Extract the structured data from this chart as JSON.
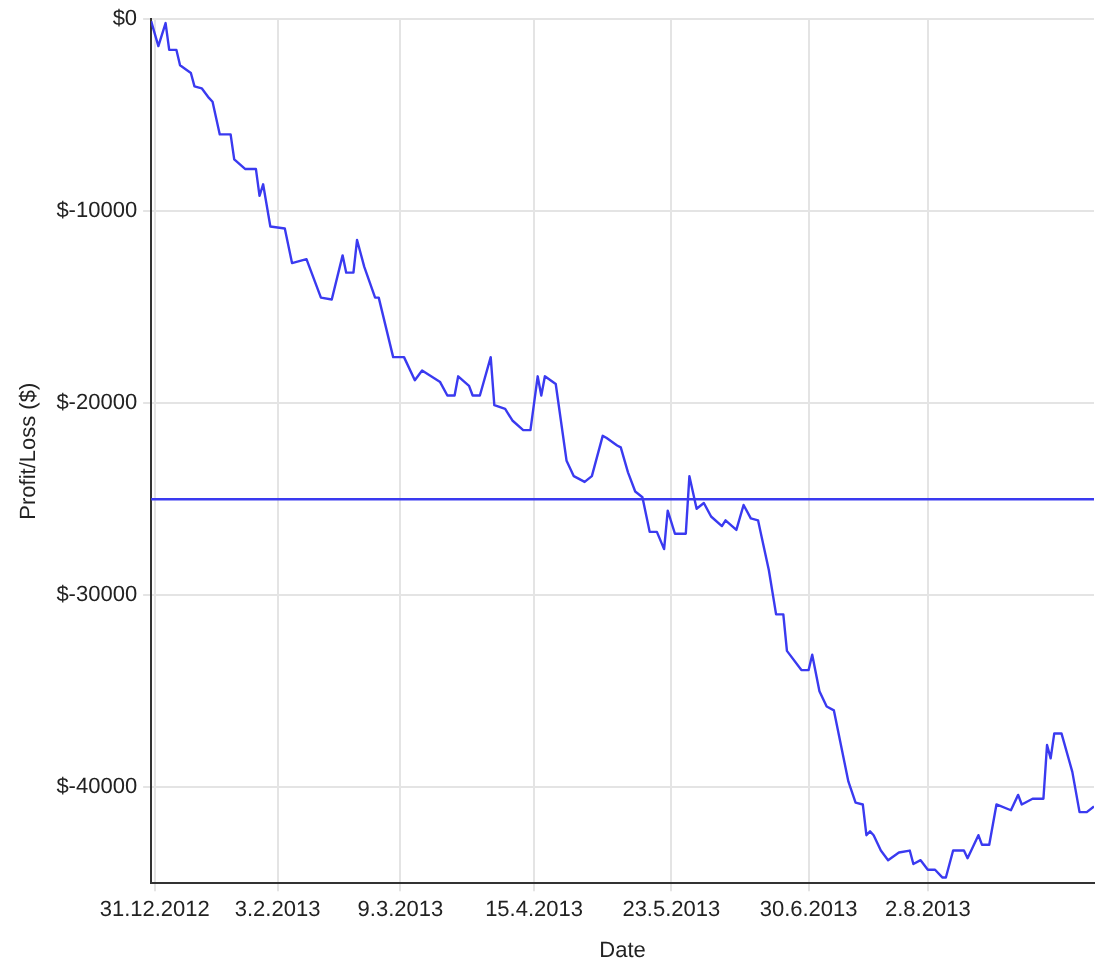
{
  "chart_data": {
    "type": "line",
    "xlabel": "Date",
    "ylabel": "Profit/Loss ($)",
    "xlim": [
      "2012-12-30",
      "2013-09-17"
    ],
    "xticks": [
      {
        "value": "2012-12-31",
        "label": "31.12.2012"
      },
      {
        "value": "2013-02-03",
        "label": "3.2.2013"
      },
      {
        "value": "2013-03-09",
        "label": "9.3.2013"
      },
      {
        "value": "2013-04-15",
        "label": "15.4.2013"
      },
      {
        "value": "2013-05-23",
        "label": "23.5.2013"
      },
      {
        "value": "2013-06-30",
        "label": "30.6.2013"
      },
      {
        "value": "2013-08-02",
        "label": "2.8.2013"
      }
    ],
    "ylim": [
      -45000,
      0
    ],
    "yticks": [
      {
        "value": -40000,
        "label": "$-40000"
      },
      {
        "value": -30000,
        "label": "$-30000"
      },
      {
        "value": -20000,
        "label": "$-20000"
      },
      {
        "value": -10000,
        "label": "$-10000"
      },
      {
        "value": 0,
        "label": "$0"
      }
    ],
    "grid": true,
    "legend": false,
    "marker": "none",
    "line_style": "solid",
    "ref_lines": [
      {
        "axis": "y",
        "value": -25000,
        "color": "#3a3af0"
      }
    ],
    "series": [
      {
        "color": "#3a3af0",
        "x": [
          "2012-12-30",
          "2013-01-01",
          "2013-01-03",
          "2013-01-04",
          "2013-01-06",
          "2013-01-07",
          "2013-01-10",
          "2013-01-11",
          "2013-01-13",
          "2013-01-15",
          "2013-01-16",
          "2013-01-18",
          "2013-01-21",
          "2013-01-22",
          "2013-01-25",
          "2013-01-28",
          "2013-01-29",
          "2013-01-30",
          "2013-02-01",
          "2013-02-05",
          "2013-02-07",
          "2013-02-11",
          "2013-02-15",
          "2013-02-18",
          "2013-02-21",
          "2013-02-22",
          "2013-02-24",
          "2013-02-25",
          "2013-02-27",
          "2013-03-02",
          "2013-03-03",
          "2013-03-07",
          "2013-03-10",
          "2013-03-13",
          "2013-03-15",
          "2013-03-20",
          "2013-03-22",
          "2013-03-24",
          "2013-03-25",
          "2013-03-28",
          "2013-03-29",
          "2013-03-31",
          "2013-04-03",
          "2013-04-04",
          "2013-04-07",
          "2013-04-09",
          "2013-04-12",
          "2013-04-14",
          "2013-04-16",
          "2013-04-17",
          "2013-04-18",
          "2013-04-21",
          "2013-04-24",
          "2013-04-26",
          "2013-04-29",
          "2013-05-01",
          "2013-05-04",
          "2013-05-05",
          "2013-05-08",
          "2013-05-09",
          "2013-05-11",
          "2013-05-13",
          "2013-05-15",
          "2013-05-17",
          "2013-05-19",
          "2013-05-21",
          "2013-05-22",
          "2013-05-24",
          "2013-05-27",
          "2013-05-28",
          "2013-05-30",
          "2013-06-01",
          "2013-06-03",
          "2013-06-06",
          "2013-06-07",
          "2013-06-10",
          "2013-06-12",
          "2013-06-14",
          "2013-06-16",
          "2013-06-19",
          "2013-06-21",
          "2013-06-23",
          "2013-06-24",
          "2013-06-28",
          "2013-06-30",
          "2013-07-01",
          "2013-07-03",
          "2013-07-05",
          "2013-07-07",
          "2013-07-11",
          "2013-07-13",
          "2013-07-15",
          "2013-07-16",
          "2013-07-17",
          "2013-07-18",
          "2013-07-20",
          "2013-07-22",
          "2013-07-25",
          "2013-07-28",
          "2013-07-29",
          "2013-07-31",
          "2013-08-02",
          "2013-08-04",
          "2013-08-06",
          "2013-08-07",
          "2013-08-09",
          "2013-08-12",
          "2013-08-13",
          "2013-08-16",
          "2013-08-17",
          "2013-08-19",
          "2013-08-21",
          "2013-08-25",
          "2013-08-27",
          "2013-08-28",
          "2013-08-31",
          "2013-09-03",
          "2013-09-04",
          "2013-09-05",
          "2013-09-06",
          "2013-09-08",
          "2013-09-11",
          "2013-09-13",
          "2013-09-15",
          "2013-09-17"
        ],
        "values": [
          -100,
          -1400,
          -200,
          -1600,
          -1600,
          -2400,
          -2800,
          -3500,
          -3600,
          -4100,
          -4300,
          -6000,
          -6000,
          -7300,
          -7800,
          -7800,
          -9200,
          -8600,
          -10800,
          -10900,
          -12700,
          -12500,
          -14500,
          -14600,
          -12300,
          -13200,
          -13200,
          -11500,
          -12900,
          -14500,
          -14500,
          -17600,
          -17600,
          -18800,
          -18300,
          -18900,
          -19600,
          -19600,
          -18600,
          -19100,
          -19600,
          -19600,
          -17600,
          -20100,
          -20300,
          -20900,
          -21400,
          -21400,
          -18600,
          -19600,
          -18600,
          -19000,
          -23000,
          -23800,
          -24100,
          -23800,
          -21700,
          -21800,
          -22200,
          -22300,
          -23600,
          -24600,
          -24900,
          -26700,
          -26700,
          -27600,
          -25600,
          -26800,
          -26800,
          -23800,
          -25500,
          -25200,
          -25900,
          -26400,
          -26100,
          -26600,
          -25300,
          -26000,
          -26100,
          -28700,
          -31000,
          -31000,
          -32900,
          -33900,
          -33900,
          -33100,
          -35000,
          -35800,
          -36000,
          -39700,
          -40800,
          -40900,
          -42500,
          -42300,
          -42500,
          -43300,
          -43800,
          -43400,
          -43300,
          -44000,
          -43800,
          -44300,
          -44300,
          -44700,
          -44700,
          -43300,
          -43300,
          -43700,
          -42500,
          -43000,
          -43000,
          -40900,
          -41200,
          -40400,
          -40900,
          -40600,
          -40600,
          -37800,
          -38500,
          -37200,
          -37200,
          -39200,
          -41300,
          -41300,
          -41000
        ]
      }
    ]
  }
}
